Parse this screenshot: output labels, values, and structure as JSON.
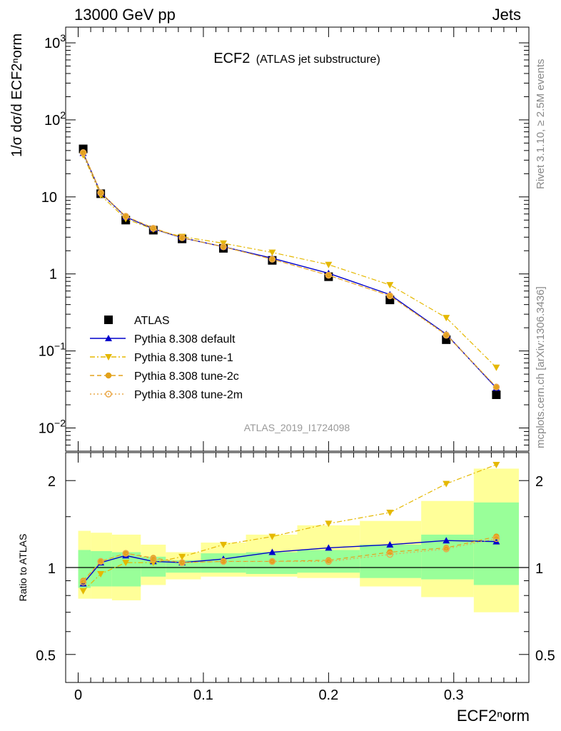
{
  "header": {
    "left": "13000 GeV pp",
    "right": "Jets"
  },
  "side_labels": {
    "rivet": "Rivet 3.1.10, ≥ 2.5M events",
    "mcplots": "mcplots.cern.ch [arXiv:1306.3436]"
  },
  "colors": {
    "atlas": "#000000",
    "default": "#0000cc",
    "tune1": "#e5b800",
    "tune2c": "#e3a21a",
    "tune2m": "#eaa84a",
    "band_inner": "#99ff99",
    "band_outer": "#ffff99"
  },
  "chart_data": [
    {
      "type": "line",
      "title": "ECF2",
      "subtitle": "(ATLAS jet substructure)",
      "watermark": "ATLAS_2019_I1724098",
      "ylabel": "1/σ dσ/d ECF2ⁿorm",
      "yscale": "log",
      "ylim": [
        0.005,
        1600
      ],
      "xlim": [
        -0.01,
        0.36
      ],
      "yticks": [
        {
          "v": 0.01,
          "base": "10",
          "exp": "−2"
        },
        {
          "v": 0.1,
          "base": "10",
          "exp": "−1"
        },
        {
          "v": 1,
          "base": "1",
          "exp": ""
        },
        {
          "v": 10,
          "base": "10",
          "exp": ""
        },
        {
          "v": 100,
          "base": "10",
          "exp": "2"
        },
        {
          "v": 1000,
          "base": "10",
          "exp": "3"
        }
      ],
      "x": [
        0.004,
        0.018,
        0.038,
        0.06,
        0.083,
        0.116,
        0.155,
        0.2,
        0.249,
        0.294,
        0.334
      ],
      "series": [
        {
          "name": "ATLAS",
          "key": "atlas",
          "marker": "square",
          "values": [
            42,
            11,
            5.0,
            3.7,
            2.85,
            2.15,
            1.5,
            0.92,
            0.46,
            0.14,
            0.027
          ]
        },
        {
          "name": "Pythia 8.308 default",
          "key": "default",
          "marker": "triangle-up",
          "dash": "",
          "values": [
            37,
            11.3,
            5.5,
            3.85,
            2.95,
            2.25,
            1.6,
            1.02,
            0.54,
            0.165,
            0.033
          ]
        },
        {
          "name": "Pythia 8.308 tune-1",
          "key": "tune1",
          "marker": "triangle-down",
          "dash": "7,3,2,3",
          "values": [
            35,
            10.5,
            5.2,
            3.8,
            3.05,
            2.5,
            1.9,
            1.32,
            0.72,
            0.27,
            0.061
          ]
        },
        {
          "name": "Pythia 8.308 tune-2c",
          "key": "tune2c",
          "marker": "circle",
          "dash": "6,4",
          "values": [
            38,
            11.4,
            5.6,
            3.95,
            2.95,
            2.25,
            1.55,
            0.96,
            0.52,
            0.163,
            0.034
          ]
        },
        {
          "name": "Pythia 8.308 tune-2m",
          "key": "tune2m",
          "marker": "circle-open",
          "dash": "2,3",
          "values": [
            37.5,
            11.3,
            5.6,
            3.9,
            2.95,
            2.25,
            1.55,
            0.96,
            0.52,
            0.16,
            0.034
          ]
        }
      ]
    },
    {
      "type": "line",
      "ylabel": "Ratio to ATLAS",
      "xlabel": "ECF2ⁿorm",
      "yscale": "log",
      "ylim": [
        0.4,
        2.5
      ],
      "xlim": [
        -0.01,
        0.36
      ],
      "yticks": [
        {
          "v": 0.5,
          "label": "0.5"
        },
        {
          "v": 1,
          "label": "1"
        },
        {
          "v": 2,
          "label": "2"
        }
      ],
      "xticks": [
        {
          "v": 0,
          "label": "0"
        },
        {
          "v": 0.1,
          "label": "0.1"
        },
        {
          "v": 0.2,
          "label": "0.2"
        },
        {
          "v": 0.3,
          "label": "0.3"
        }
      ],
      "bins": [
        {
          "lo": 0.0,
          "hi": 0.01,
          "inner": [
            0.85,
            1.15
          ],
          "outer": [
            0.78,
            1.34
          ]
        },
        {
          "lo": 0.01,
          "hi": 0.027,
          "inner": [
            0.86,
            1.14
          ],
          "outer": [
            0.78,
            1.32
          ]
        },
        {
          "lo": 0.027,
          "hi": 0.05,
          "inner": [
            0.86,
            1.13
          ],
          "outer": [
            0.77,
            1.3
          ]
        },
        {
          "lo": 0.05,
          "hi": 0.07,
          "inner": [
            0.93,
            1.09
          ],
          "outer": [
            0.87,
            1.2
          ]
        },
        {
          "lo": 0.07,
          "hi": 0.098,
          "inner": [
            0.96,
            1.06
          ],
          "outer": [
            0.91,
            1.13
          ]
        },
        {
          "lo": 0.098,
          "hi": 0.134,
          "inner": [
            0.96,
            1.12
          ],
          "outer": [
            0.93,
            1.22
          ]
        },
        {
          "lo": 0.134,
          "hi": 0.175,
          "inner": [
            0.95,
            1.13
          ],
          "outer": [
            0.93,
            1.3
          ]
        },
        {
          "lo": 0.175,
          "hi": 0.225,
          "inner": [
            0.96,
            1.15
          ],
          "outer": [
            0.92,
            1.4
          ]
        },
        {
          "lo": 0.225,
          "hi": 0.274,
          "inner": [
            0.92,
            1.2
          ],
          "outer": [
            0.86,
            1.45
          ]
        },
        {
          "lo": 0.274,
          "hi": 0.316,
          "inner": [
            0.91,
            1.3
          ],
          "outer": [
            0.79,
            1.7
          ]
        },
        {
          "lo": 0.316,
          "hi": 0.352,
          "inner": [
            0.87,
            1.68
          ],
          "outer": [
            0.7,
            2.2
          ]
        }
      ],
      "series": [
        {
          "name": "Pythia 8.308 default",
          "key": "default",
          "marker": "triangle-up",
          "dash": "",
          "values": [
            0.88,
            1.04,
            1.1,
            1.05,
            1.04,
            1.07,
            1.13,
            1.17,
            1.2,
            1.24,
            1.23
          ]
        },
        {
          "name": "Pythia 8.308 tune-1",
          "key": "tune1",
          "marker": "triangle-down",
          "dash": "7,3,2,3",
          "values": [
            0.83,
            0.95,
            1.04,
            1.04,
            1.09,
            1.2,
            1.28,
            1.42,
            1.55,
            1.95,
            2.27
          ]
        },
        {
          "name": "Pythia 8.308 tune-2c",
          "key": "tune2c",
          "marker": "circle",
          "dash": "6,4",
          "values": [
            0.9,
            1.05,
            1.12,
            1.08,
            1.04,
            1.05,
            1.05,
            1.06,
            1.13,
            1.17,
            1.28
          ]
        },
        {
          "name": "Pythia 8.308 tune-2m",
          "key": "tune2m",
          "marker": "circle-open",
          "dash": "2,3",
          "values": [
            0.89,
            1.05,
            1.12,
            1.07,
            1.04,
            1.05,
            1.05,
            1.05,
            1.11,
            1.16,
            1.26
          ]
        }
      ]
    }
  ]
}
